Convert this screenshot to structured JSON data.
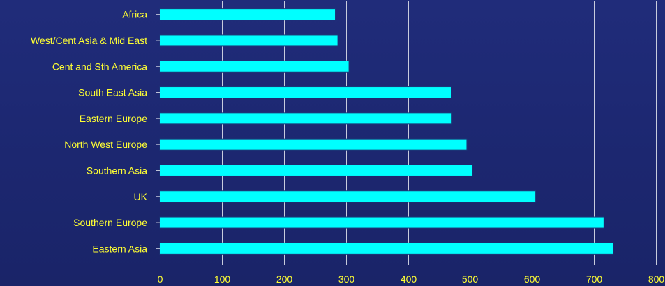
{
  "chart_data": {
    "type": "bar",
    "orientation": "horizontal",
    "categories": [
      "Africa",
      "West/Cent Asia & Mid East",
      "Cent and Sth America",
      "South East Asia",
      "Eastern Europe",
      "North West Europe",
      "Southern Asia",
      "UK",
      "Southern Europe",
      "Eastern Asia"
    ],
    "values": [
      283,
      287,
      305,
      470,
      471,
      495,
      504,
      606,
      716,
      731
    ],
    "xlim": [
      0,
      800
    ],
    "xticks": [
      "0",
      "100",
      "200",
      "300",
      "400",
      "500",
      "600",
      "700",
      "800"
    ],
    "title": "",
    "xlabel": "",
    "ylabel": "",
    "grid": "vertical",
    "colors": {
      "bar": "#00ffff",
      "text": "#ffff33",
      "grid": "#c8ccdd",
      "background": "#1e2a75"
    }
  }
}
